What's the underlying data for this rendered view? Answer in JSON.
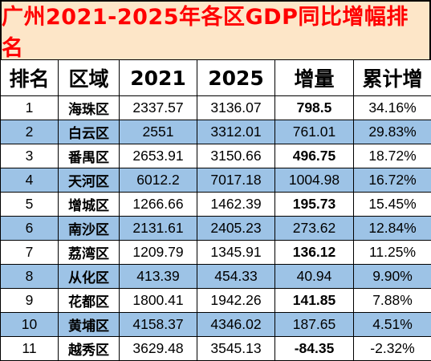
{
  "title": "广州2021-2025年各区GDP同比增幅排名",
  "colors": {
    "title_bg": "#fde6c8",
    "title_text": "#ff0000",
    "stripe": "#9dc3e6",
    "highlight_text": "#ff0000"
  },
  "headers": [
    "排名",
    "区域",
    "2021",
    "2025",
    "增量",
    "累计增"
  ],
  "rows": [
    {
      "rank": "1",
      "district": "海珠区",
      "y2021": "2337.57",
      "y2025": "3136.07",
      "increase": "798.5",
      "increase_red": true,
      "growth": "34.16%"
    },
    {
      "rank": "2",
      "district": "白云区",
      "y2021": "2551",
      "y2025": "3312.01",
      "increase": "761.01",
      "increase_red": false,
      "growth": "29.83%"
    },
    {
      "rank": "3",
      "district": "番禺区",
      "y2021": "2653.91",
      "y2025": "3150.66",
      "increase": "496.75",
      "increase_red": true,
      "growth": "18.72%"
    },
    {
      "rank": "4",
      "district": "天河区",
      "y2021": "6012.2",
      "y2025": "7017.18",
      "increase": "1004.98",
      "increase_red": false,
      "growth": "16.72%"
    },
    {
      "rank": "5",
      "district": "增城区",
      "y2021": "1266.66",
      "y2025": "1462.39",
      "increase": "195.73",
      "increase_red": true,
      "growth": "15.45%"
    },
    {
      "rank": "6",
      "district": "南沙区",
      "y2021": "2131.61",
      "y2025": "2405.23",
      "increase": "273.62",
      "increase_red": false,
      "growth": "12.84%"
    },
    {
      "rank": "7",
      "district": "荔湾区",
      "y2021": "1209.79",
      "y2025": "1345.91",
      "increase": "136.12",
      "increase_red": true,
      "growth": "11.25%"
    },
    {
      "rank": "8",
      "district": "从化区",
      "y2021": "413.39",
      "y2025": "454.33",
      "increase": "40.94",
      "increase_red": false,
      "growth": "9.90%"
    },
    {
      "rank": "9",
      "district": "花都区",
      "y2021": "1800.41",
      "y2025": "1942.26",
      "increase": "141.85",
      "increase_red": true,
      "growth": "7.88%"
    },
    {
      "rank": "10",
      "district": "黄埔区",
      "y2021": "4158.37",
      "y2025": "4346.02",
      "increase": "187.65",
      "increase_red": false,
      "growth": "4.51%"
    },
    {
      "rank": "11",
      "district": "越秀区",
      "y2021": "3629.48",
      "y2025": "3545.13",
      "increase": "-84.35",
      "increase_red": true,
      "growth": "-2.32%"
    }
  ]
}
